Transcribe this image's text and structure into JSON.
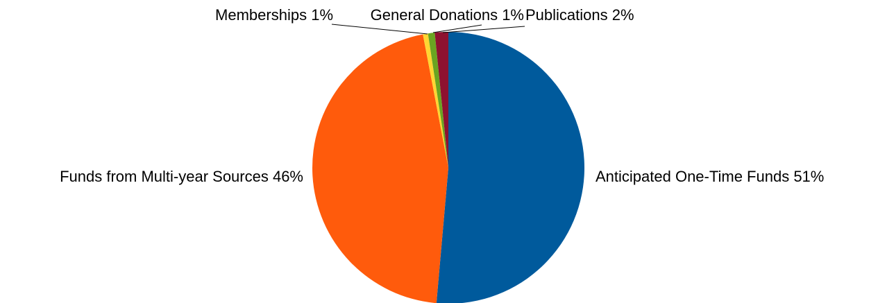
{
  "chart_data": {
    "type": "pie",
    "title": "",
    "slices": [
      {
        "label": "Anticipated One-Time Funds",
        "percent_label": "51%",
        "value": 51.4,
        "color": "#005A9C"
      },
      {
        "label": "Funds from Multi-year Sources",
        "percent_label": "46%",
        "value": 45.6,
        "color": "#FF5B0C"
      },
      {
        "label": "Memberships",
        "percent_label": "1%",
        "value": 0.6,
        "color": "#FFD633"
      },
      {
        "label": "General Donations",
        "percent_label": "1%",
        "value": 0.8,
        "color": "#6AA521"
      },
      {
        "label": "Publications",
        "percent_label": "2%",
        "value": 1.6,
        "color": "#8E1230"
      }
    ],
    "start_angle": "12 o'clock",
    "direction": "clockwise",
    "legend": "none"
  }
}
